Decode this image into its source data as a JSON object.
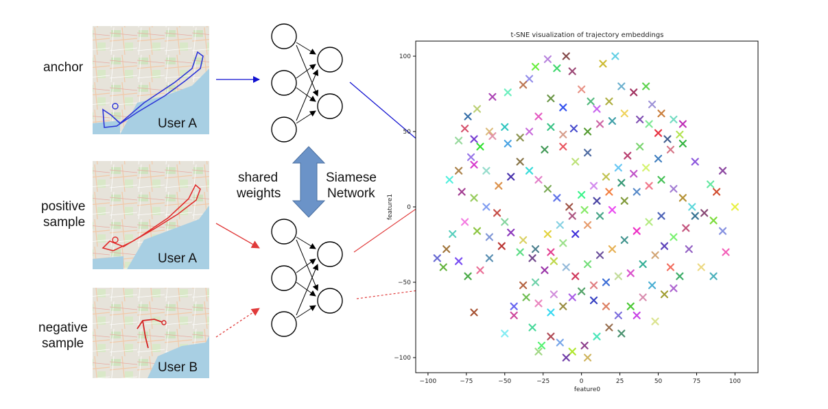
{
  "samples": {
    "anchor": {
      "label": "anchor",
      "user": "User A",
      "route_color": "#2a33d8"
    },
    "positive": {
      "label_line1": "positive",
      "label_line2": "sample",
      "user": "User A",
      "route_color": "#e02a2a"
    },
    "negative": {
      "label_line1": "negative",
      "label_line2": "sample",
      "user": "User B",
      "route_color": "#d42020"
    }
  },
  "center": {
    "shared_line1": "shared",
    "shared_line2": "weights",
    "siamese_line1": "Siamese",
    "siamese_line2": "Network",
    "arrow_color": "#6b93c8"
  },
  "colors": {
    "anchor_arrow": "#1010d0",
    "sample_arrow": "#e03a3a"
  },
  "chart_data": {
    "type": "scatter",
    "title": "t-SNE visualization of trajectory embeddings",
    "xlabel": "feature0",
    "ylabel": "feature1",
    "xlim": [
      -108,
      115
    ],
    "ylim": [
      -110,
      110
    ],
    "xticks": [
      -100,
      -75,
      -50,
      -25,
      0,
      25,
      50,
      75,
      100
    ],
    "yticks": [
      100,
      50,
      0,
      -50,
      -100
    ],
    "marker": "x",
    "points": [
      [
        -10,
        100
      ],
      [
        -16,
        92
      ],
      [
        -22,
        98
      ],
      [
        14,
        95
      ],
      [
        22,
        100
      ],
      [
        -6,
        90
      ],
      [
        -30,
        93
      ],
      [
        -34,
        85
      ],
      [
        -38,
        81
      ],
      [
        -48,
        76
      ],
      [
        -58,
        73
      ],
      [
        -68,
        65
      ],
      [
        -74,
        60
      ],
      [
        -76,
        52
      ],
      [
        -80,
        44
      ],
      [
        -70,
        45
      ],
      [
        -60,
        50
      ],
      [
        -50,
        53
      ],
      [
        -28,
        60
      ],
      [
        -20,
        72
      ],
      [
        -12,
        66
      ],
      [
        0,
        78
      ],
      [
        6,
        70
      ],
      [
        10,
        65
      ],
      [
        18,
        70
      ],
      [
        26,
        80
      ],
      [
        34,
        76
      ],
      [
        42,
        80
      ],
      [
        46,
        68
      ],
      [
        52,
        62
      ],
      [
        60,
        58
      ],
      [
        66,
        55
      ],
      [
        64,
        48
      ],
      [
        56,
        45
      ],
      [
        50,
        49
      ],
      [
        44,
        55
      ],
      [
        38,
        58
      ],
      [
        28,
        62
      ],
      [
        20,
        57
      ],
      [
        12,
        55
      ],
      [
        4,
        50
      ],
      [
        -5,
        52
      ],
      [
        -12,
        48
      ],
      [
        -20,
        53
      ],
      [
        -34,
        50
      ],
      [
        -40,
        46
      ],
      [
        -48,
        42
      ],
      [
        -58,
        47
      ],
      [
        -66,
        40
      ],
      [
        -72,
        33
      ],
      [
        -80,
        24
      ],
      [
        -86,
        18
      ],
      [
        -78,
        10
      ],
      [
        -70,
        6
      ],
      [
        -62,
        0
      ],
      [
        -55,
        -4
      ],
      [
        -50,
        -10
      ],
      [
        -46,
        -17
      ],
      [
        -38,
        -22
      ],
      [
        -30,
        -28
      ],
      [
        -20,
        -30
      ],
      [
        -12,
        -24
      ],
      [
        -4,
        -18
      ],
      [
        4,
        -12
      ],
      [
        12,
        -6
      ],
      [
        20,
        -2
      ],
      [
        28,
        4
      ],
      [
        36,
        10
      ],
      [
        44,
        14
      ],
      [
        52,
        18
      ],
      [
        60,
        12
      ],
      [
        66,
        6
      ],
      [
        72,
        0
      ],
      [
        80,
        -4
      ],
      [
        86,
        -9
      ],
      [
        92,
        -16
      ],
      [
        88,
        10
      ],
      [
        84,
        15
      ],
      [
        92,
        24
      ],
      [
        100,
        0
      ],
      [
        74,
        -6
      ],
      [
        68,
        -14
      ],
      [
        60,
        -20
      ],
      [
        54,
        -26
      ],
      [
        48,
        -32
      ],
      [
        40,
        -38
      ],
      [
        32,
        -44
      ],
      [
        24,
        -46
      ],
      [
        16,
        -50
      ],
      [
        8,
        -52
      ],
      [
        0,
        -56
      ],
      [
        -6,
        -60
      ],
      [
        -12,
        -66
      ],
      [
        -20,
        -70
      ],
      [
        -28,
        -64
      ],
      [
        -36,
        -60
      ],
      [
        -44,
        -66
      ],
      [
        -38,
        -52
      ],
      [
        -30,
        -50
      ],
      [
        -24,
        -42
      ],
      [
        -18,
        -36
      ],
      [
        -10,
        -40
      ],
      [
        -4,
        -46
      ],
      [
        4,
        -38
      ],
      [
        12,
        -32
      ],
      [
        20,
        -28
      ],
      [
        28,
        -22
      ],
      [
        36,
        -16
      ],
      [
        44,
        -10
      ],
      [
        52,
        -6
      ],
      [
        58,
        -40
      ],
      [
        64,
        -46
      ],
      [
        60,
        -54
      ],
      [
        54,
        -58
      ],
      [
        46,
        -52
      ],
      [
        40,
        -60
      ],
      [
        32,
        -66
      ],
      [
        24,
        -72
      ],
      [
        18,
        -80
      ],
      [
        10,
        -86
      ],
      [
        2,
        -92
      ],
      [
        -6,
        -96
      ],
      [
        -14,
        -90
      ],
      [
        -20,
        -86
      ],
      [
        -26,
        -92
      ],
      [
        -10,
        -100
      ],
      [
        4,
        -100
      ],
      [
        -50,
        -84
      ],
      [
        -44,
        -72
      ],
      [
        -28,
        -96
      ],
      [
        8,
        -62
      ],
      [
        16,
        -66
      ],
      [
        26,
        -84
      ],
      [
        36,
        -72
      ],
      [
        48,
        -76
      ],
      [
        -60,
        -34
      ],
      [
        -66,
        -42
      ],
      [
        -74,
        -46
      ],
      [
        -80,
        -36
      ],
      [
        -88,
        -28
      ],
      [
        -84,
        -18
      ],
      [
        -76,
        -10
      ],
      [
        -68,
        -16
      ],
      [
        -60,
        -20
      ],
      [
        -52,
        -26
      ],
      [
        -40,
        -30
      ],
      [
        -32,
        -34
      ],
      [
        -22,
        -18
      ],
      [
        -14,
        -12
      ],
      [
        -6,
        -6
      ],
      [
        2,
        -2
      ],
      [
        10,
        4
      ],
      [
        18,
        10
      ],
      [
        26,
        16
      ],
      [
        34,
        22
      ],
      [
        42,
        26
      ],
      [
        50,
        32
      ],
      [
        58,
        38
      ],
      [
        66,
        42
      ],
      [
        74,
        30
      ],
      [
        -40,
        30
      ],
      [
        -34,
        24
      ],
      [
        -28,
        18
      ],
      [
        -22,
        12
      ],
      [
        -16,
        6
      ],
      [
        -8,
        0
      ],
      [
        0,
        8
      ],
      [
        8,
        14
      ],
      [
        16,
        20
      ],
      [
        24,
        26
      ],
      [
        30,
        34
      ],
      [
        38,
        40
      ],
      [
        -46,
        20
      ],
      [
        -54,
        14
      ],
      [
        -62,
        24
      ],
      [
        -70,
        28
      ],
      [
        -4,
        30
      ],
      [
        4,
        36
      ],
      [
        -12,
        40
      ],
      [
        -24,
        38
      ],
      [
        70,
        -28
      ],
      [
        78,
        -40
      ],
      [
        86,
        -46
      ],
      [
        94,
        -30
      ],
      [
        -90,
        -40
      ],
      [
        -94,
        -34
      ],
      [
        -70,
        -70
      ],
      [
        -32,
        -80
      ],
      [
        -18,
        -58
      ]
    ]
  }
}
